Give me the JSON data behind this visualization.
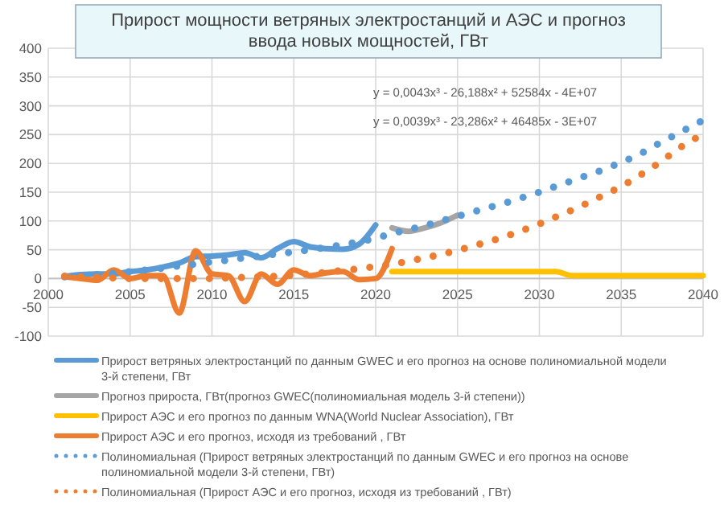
{
  "chart_data": {
    "type": "line",
    "title": "Прирост мощности ветряных электростанций и АЭС и прогноз ввода новых мощностей, ГВт",
    "xlim": [
      2000,
      2040
    ],
    "xticks": [
      2000,
      2005,
      2010,
      2015,
      2020,
      2025,
      2030,
      2035,
      2040
    ],
    "ylim": [
      -100,
      400
    ],
    "yticks": [
      -100,
      -50,
      0,
      50,
      100,
      150,
      200,
      250,
      300,
      350,
      400
    ],
    "grid": true,
    "legend": "bottom",
    "marker": "none",
    "annotations": [
      "y = 0,0043x³ - 26,188x² + 52584x - 4E+07",
      "y = 0,0039x³ - 23,286x² + 46485x - 3E+07"
    ],
    "series": [
      {
        "name": "Прирост ветряных электростанций по данным GWEC и его прогноз на основе полиномиальной модели 3-й степени, ГВт",
        "color": "#5b9bd5",
        "line_style": "solid",
        "x": [
          2001,
          2002,
          2003,
          2004,
          2005,
          2006,
          2007,
          2008,
          2009,
          2010,
          2011,
          2012,
          2013,
          2014,
          2015,
          2016,
          2017,
          2018,
          2019,
          2020
        ],
        "values": [
          4,
          7,
          8,
          8,
          12,
          15,
          20,
          27,
          38,
          39,
          41,
          45,
          36,
          52,
          64,
          55,
          52,
          51,
          60,
          93
        ]
      },
      {
        "name": "Прогноз прироста, ГВт(прогноз GWEC(полиномиальная модель 3-й степени))",
        "color": "#a5a5a5",
        "line_style": "solid",
        "x": [
          2021,
          2022,
          2023,
          2024,
          2025
        ],
        "values": [
          88,
          82,
          88,
          97,
          110
        ]
      },
      {
        "name": "Прирост АЭС и его прогноз по данным WNA(World Nuclear Association), ГВт",
        "color": "#ffc000",
        "line_style": "solid",
        "x": [
          2021,
          2022,
          2023,
          2024,
          2025,
          2026,
          2027,
          2028,
          2029,
          2030,
          2031,
          2032,
          2033,
          2034,
          2035,
          2036,
          2037,
          2038,
          2039,
          2040
        ],
        "values": [
          12,
          12,
          12,
          12,
          12,
          12,
          12,
          12,
          12,
          12,
          12,
          5,
          5,
          5,
          5,
          5,
          5,
          5,
          5,
          5
        ]
      },
      {
        "name": "Прирост АЭС и его прогноз, исходя из требований , ГВт",
        "color": "#ed7d31",
        "line_style": "solid",
        "x": [
          2001,
          2002,
          2003,
          2004,
          2005,
          2006,
          2007,
          2008,
          2009,
          2010,
          2011,
          2012,
          2013,
          2014,
          2015,
          2016,
          2017,
          2018,
          2019,
          2020,
          2021
        ],
        "values": [
          3,
          0,
          -3,
          15,
          0,
          5,
          5,
          -60,
          48,
          8,
          5,
          -40,
          8,
          -10,
          15,
          5,
          10,
          12,
          -2,
          0,
          52
        ]
      },
      {
        "name": "Полиномиальная (Прирост ветряных электростанций по данным GWEC и его прогноз на основе полиномиальной модели 3-й степени, ГВт)",
        "color": "#5b9bd5",
        "line_style": "dotted",
        "x": [
          2001,
          2002,
          2003,
          2004,
          2005,
          2006,
          2007,
          2008,
          2009,
          2010,
          2011,
          2012,
          2013,
          2014,
          2015,
          2016,
          2017,
          2018,
          2019,
          2020,
          2021,
          2022,
          2023,
          2024,
          2025,
          2026,
          2027,
          2028,
          2029,
          2030,
          2031,
          2032,
          2033,
          2034,
          2035,
          2036,
          2037,
          2038,
          2039,
          2040
        ],
        "values": [
          3,
          5,
          7,
          9,
          12,
          15,
          18,
          22,
          25,
          29,
          32,
          36,
          39,
          43,
          46,
          50,
          54,
          59,
          64,
          70,
          78,
          85,
          92,
          100,
          108,
          116,
          124,
          132,
          141,
          150,
          160,
          170,
          180,
          190,
          202,
          214,
          230,
          245,
          260,
          275
        ]
      },
      {
        "name": "Полиномиальная (Прирост АЭС и его прогноз, исходя из требований , ГВт)",
        "color": "#ed7d31",
        "line_style": "dotted",
        "x": [
          2001,
          2002,
          2003,
          2004,
          2005,
          2006,
          2007,
          2008,
          2009,
          2010,
          2011,
          2012,
          2013,
          2014,
          2015,
          2016,
          2017,
          2018,
          2019,
          2020,
          2021,
          2022,
          2023,
          2024,
          2025,
          2026,
          2027,
          2028,
          2029,
          2030,
          2031,
          2032,
          2033,
          2034,
          2035,
          2036,
          2037,
          2038,
          2039,
          2040
        ],
        "values": [
          4,
          3,
          2,
          1,
          0,
          0,
          0,
          0,
          0,
          0,
          1,
          2,
          3,
          4,
          6,
          8,
          11,
          14,
          17,
          21,
          25,
          30,
          36,
          42,
          49,
          57,
          65,
          74,
          84,
          95,
          107,
          119,
          132,
          146,
          160,
          177,
          195,
          215,
          235,
          250
        ]
      }
    ]
  }
}
